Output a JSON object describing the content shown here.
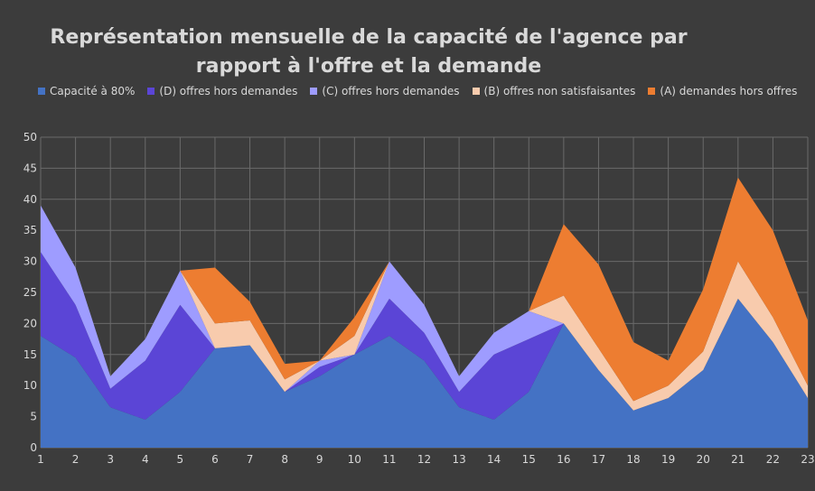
{
  "chart_data": {
    "type": "area",
    "title_line1": "Représentation mensuelle de la capacité de l'agence par",
    "title_line2": "rapport à l'offre et la demande",
    "xlabel": "",
    "ylabel": "",
    "ylim": [
      0,
      50
    ],
    "yticks": [
      0,
      5,
      10,
      15,
      20,
      25,
      30,
      35,
      40,
      45,
      50
    ],
    "x": [
      "1",
      "2",
      "3",
      "4",
      "5",
      "6",
      "7",
      "8",
      "9",
      "10",
      "11",
      "12",
      "13",
      "14",
      "15",
      "16",
      "17",
      "18",
      "19",
      "20",
      "21",
      "22",
      "23"
    ],
    "grid": true,
    "legend_position": "top",
    "series": [
      {
        "name": "Capacité à 80%",
        "color": "#4472c4",
        "values": [
          18,
          14.5,
          6.5,
          4.5,
          9,
          16,
          16.5,
          9,
          11.5,
          15,
          18,
          14,
          6.5,
          4.5,
          9,
          20,
          12.5,
          6,
          8,
          12.5,
          24,
          17,
          8
        ]
      },
      {
        "name": "(D) offres hors demandes",
        "color": "#5b45d6",
        "values": [
          13.5,
          8.5,
          3,
          9.5,
          14,
          0,
          0,
          0,
          1.5,
          0,
          6,
          4.5,
          2.5,
          10.5,
          8.5,
          0,
          0,
          0,
          0,
          0,
          0,
          0,
          0
        ]
      },
      {
        "name": "(C) offres hors demandes",
        "color": "#9e9cff",
        "values": [
          7.5,
          6,
          2,
          3.5,
          5.5,
          0,
          0,
          0,
          1,
          0,
          6,
          4.5,
          2.5,
          3.5,
          4.5,
          0,
          0,
          0,
          0,
          0,
          0,
          0,
          0
        ]
      },
      {
        "name": "(B) offres non satisfaisantes",
        "color": "#f8cbad",
        "values": [
          0,
          0,
          0,
          0,
          0,
          4,
          4,
          2,
          0,
          3,
          0,
          0,
          0,
          0,
          0,
          4.5,
          3.5,
          1.5,
          2,
          3,
          6,
          4,
          2
        ]
      },
      {
        "name": "(A) demandes hors offres",
        "color": "#ed7d31",
        "values": [
          0,
          0,
          0,
          0,
          0,
          9,
          3,
          2.5,
          0,
          3,
          0,
          0,
          0,
          0,
          0,
          11.5,
          13.5,
          9.5,
          4,
          10,
          13.5,
          14,
          10.5
        ]
      }
    ]
  }
}
